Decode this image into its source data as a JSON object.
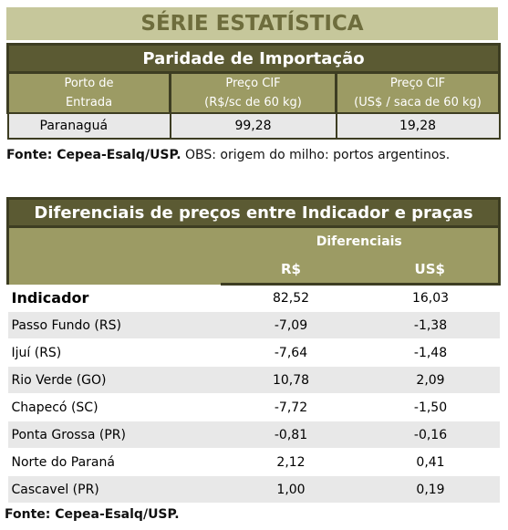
{
  "header": {
    "title": "SÉRIE ESTATÍSTICA"
  },
  "import_table": {
    "title": "Paridade de Importação",
    "columns": [
      [
        "Porto de",
        "Entrada"
      ],
      [
        "Preço CIF",
        "(R$/sc de 60 kg)"
      ],
      [
        "Preço CIF",
        "(US$ / saca de 60 kg)"
      ]
    ],
    "rows": [
      [
        "Paranaguá",
        "99,28",
        "19,28"
      ]
    ]
  },
  "note": {
    "source": "Fonte: Cepea-Esalq/USP.",
    "obs": "OBS: origem do milho: portos argentinos."
  },
  "diff_table": {
    "title": "Diferenciais de preços entre Indicador e praças",
    "group": "Diferenciais",
    "columns": [
      "R$",
      "US$"
    ],
    "rows": [
      [
        "Indicador",
        "82,52",
        "16,03"
      ],
      [
        "Passo Fundo (RS)",
        "-7,09",
        "-1,38"
      ],
      [
        "Ijuí (RS)",
        "-7,64",
        "-1,48"
      ],
      [
        "Rio Verde (GO)",
        "10,78",
        "2,09"
      ],
      [
        "Chapecó (SC)",
        "-7,72",
        "-1,50"
      ],
      [
        "Ponta Grossa (PR)",
        "-0,81",
        "-0,16"
      ],
      [
        "Norte do Paraná",
        "2,12",
        "0,41"
      ],
      [
        "Cascavel (PR)",
        "1,00",
        "0,19"
      ]
    ]
  },
  "footer": "Fonte: Cepea-Esalq/USP."
}
